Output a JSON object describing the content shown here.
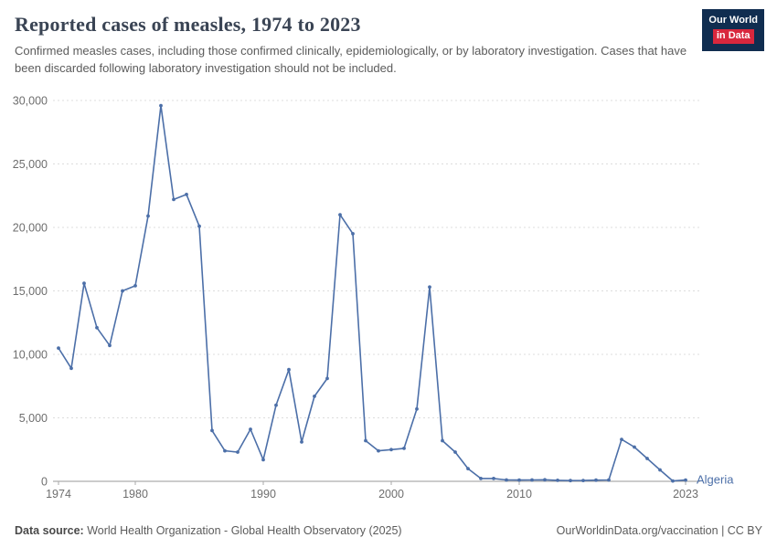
{
  "header": {
    "title": "Reported cases of measles, 1974 to 2023",
    "subtitle": "Confirmed measles cases, including those confirmed clinically, epidemiologically, or by laboratory investigation. Cases that have been discarded following laboratory investigation should not be included."
  },
  "logo": {
    "line1": "Our World",
    "line2": "in Data"
  },
  "footer": {
    "source_label": "Data source:",
    "source_text": "World Health Organization - Global Health Observatory (2025)",
    "right_text": "OurWorldinData.org/vaccination | CC BY"
  },
  "chart_data": {
    "type": "line",
    "title": "Reported cases of measles, 1974 to 2023",
    "entity": "Algeria",
    "line_color": "#4c6fa8",
    "grid": true,
    "xlim": [
      1974,
      2023
    ],
    "ylim": [
      0,
      30000
    ],
    "xticks": [
      1974,
      1980,
      1990,
      2000,
      2010,
      2023
    ],
    "yticks": [
      0,
      5000,
      10000,
      15000,
      20000,
      25000,
      30000
    ],
    "x": [
      1974,
      1975,
      1976,
      1977,
      1978,
      1979,
      1980,
      1981,
      1982,
      1983,
      1984,
      1985,
      1986,
      1987,
      1988,
      1989,
      1990,
      1991,
      1992,
      1993,
      1994,
      1995,
      1996,
      1997,
      1998,
      1999,
      2000,
      2001,
      2002,
      2003,
      2004,
      2005,
      2006,
      2007,
      2008,
      2009,
      2010,
      2011,
      2012,
      2013,
      2014,
      2015,
      2016,
      2017,
      2018,
      2019,
      2020,
      2021,
      2022,
      2023
    ],
    "values": [
      10500,
      8900,
      15600,
      12100,
      10700,
      15000,
      15400,
      20900,
      29600,
      22200,
      22600,
      20100,
      4000,
      2400,
      2300,
      4100,
      1700,
      6000,
      8800,
      3100,
      6700,
      8100,
      21000,
      19500,
      3200,
      2400,
      2500,
      2600,
      5700,
      15300,
      3200,
      2300,
      1000,
      220,
      220,
      110,
      100,
      110,
      120,
      80,
      60,
      65,
      90,
      110,
      3300,
      2700,
      1800,
      900,
      30,
      100
    ]
  }
}
